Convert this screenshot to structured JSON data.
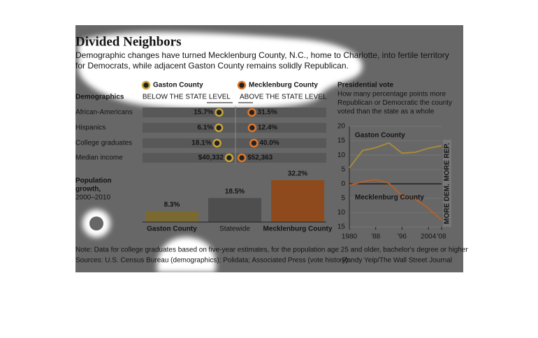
{
  "header": {
    "title": "Divided Neighbors",
    "subtitle": [
      "Demographic changes have turned Mecklenburg County, N.C., home to Charlotte, into fertile territory",
      "for Democrats, while adjacent Gaston County remains solidly Republican."
    ]
  },
  "chart_data": [
    {
      "type": "dot",
      "title": "Demographics",
      "left_label": "BELOW THE STATE LEVEL",
      "right_label": "ABOVE THE STATE LEVEL",
      "legend": "top",
      "categories": [
        "African-Americans",
        "Hispanics",
        "College graduates",
        "Median income"
      ],
      "series": [
        {
          "name": "Gaston County",
          "color": "#c9a53a",
          "values": [
            15.7,
            6.1,
            18.1,
            40332
          ],
          "value_labels": [
            "15.7%",
            "6.1%",
            "18.1%",
            "$40,332"
          ]
        },
        {
          "name": "Mecklenburg County",
          "color": "#e0782a",
          "values": [
            31.5,
            12.4,
            40.0,
            52363
          ],
          "value_labels": [
            "31.5%",
            "12.4%",
            "40.0%",
            "$52,363"
          ]
        }
      ]
    },
    {
      "type": "bar",
      "title": [
        "Population",
        "growth,",
        "2000–2010"
      ],
      "categories": [
        "Gaston County",
        "Statewide",
        "Mecklenburg County"
      ],
      "values": [
        8.3,
        18.5,
        32.2
      ],
      "value_labels": [
        "8.3%",
        "18.5%",
        "32.2%"
      ],
      "colors": [
        "#7a6a32",
        "#4e4e4e",
        "#8e4a1c"
      ]
    },
    {
      "type": "line",
      "title": "Presidential vote",
      "subtitle": [
        "How many percentage points more",
        "Republican or Democratic the county",
        "voted than the state as a whole"
      ],
      "side_labels": [
        "MORE REP.",
        "MORE DEM."
      ],
      "x": [
        1980,
        1984,
        1988,
        1992,
        1996,
        2000,
        2004,
        2008
      ],
      "xlim": [
        1980,
        2008
      ],
      "xticks": [
        1980,
        {
          "value": 1988,
          "label": "'88"
        },
        {
          "value": 1996,
          "label": "'96"
        },
        2004,
        {
          "value": 2008,
          "label": "'08"
        }
      ],
      "ylim": [
        -15,
        20
      ],
      "yticks": [
        20,
        15,
        10,
        5,
        0,
        {
          "value": -5,
          "label": "5"
        },
        {
          "value": -10,
          "label": "10"
        },
        {
          "value": -15,
          "label": "15"
        }
      ],
      "grid": true,
      "series": [
        {
          "name": "Gaston County",
          "color": "#a68a3a",
          "values": [
            5.6,
            11.6,
            12.6,
            14.3,
            10.7,
            11,
            12.4,
            13.3
          ]
        },
        {
          "name": "Mecklenburg County",
          "color": "#b5602a",
          "values": [
            -0.5,
            0.7,
            1.5,
            0.2,
            -4,
            -5.3,
            -8.5,
            -12.6
          ]
        }
      ]
    }
  ],
  "footer": {
    "note": "Note: Data for college graduates based on five-year estimates, for the population age 25 and older, bachelor's degree or higher",
    "sources": "Sources: U.S. Census Bureau (demographics); Polidata; Associated Press (vote history)",
    "credit": "Randy Yeip/The Wall Street Journal"
  }
}
